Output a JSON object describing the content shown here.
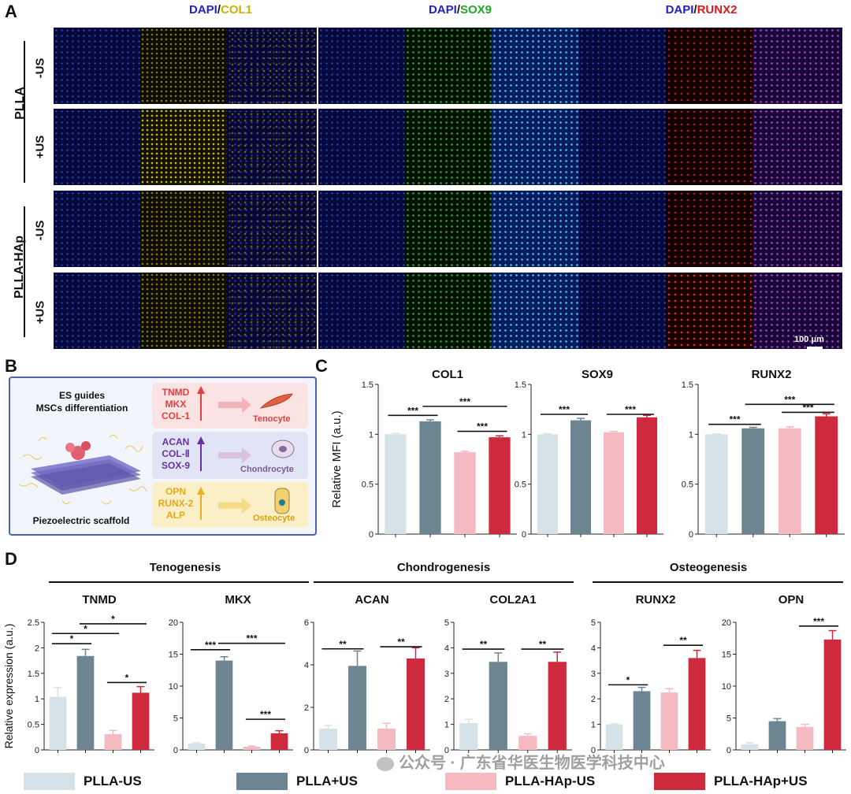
{
  "panelA": {
    "letter": "A",
    "headers": [
      {
        "dapi": "DAPI",
        "slash": "/",
        "marker": "COL1",
        "color": "#c8b400"
      },
      {
        "dapi": "DAPI",
        "slash": "/",
        "marker": "SOX9",
        "color": "#22a822"
      },
      {
        "dapi": "DAPI",
        "slash": "/",
        "marker": "RUNX2",
        "color": "#e01818"
      }
    ],
    "dapi_color": "#2020d0",
    "group_labels": [
      "PLLA",
      "PLLA-HAp"
    ],
    "row_labels": [
      "-US",
      "+US",
      "-US",
      "+US"
    ],
    "scale_bar": "100 μm"
  },
  "panelB": {
    "letter": "B",
    "title_line1": "ES guides",
    "title_line2": "MSCs differentiation",
    "scaffold_label": "Piezoelectric scaffold",
    "rows": [
      {
        "markers": [
          "TNMD",
          "MKX",
          "COL-1"
        ],
        "cell": "Tenocyte",
        "color": "#e04040",
        "bg": "#fbe3e3"
      },
      {
        "markers": [
          "ACAN",
          "COL-Ⅱ",
          "SOX-9"
        ],
        "cell": "Chondrocyte",
        "color": "#6a2fa0",
        "bg": "#e1e4f4"
      },
      {
        "markers": [
          "OPN",
          "RUNX-2",
          "ALP"
        ],
        "cell": "Osteocyte",
        "color": "#e8b020",
        "bg": "#fbefc8"
      }
    ]
  },
  "panelC": {
    "letter": "C"
  },
  "panelD": {
    "letter": "D",
    "groups": [
      "Tenogenesis",
      "Chondrogenesis",
      "Osteogenesis"
    ]
  },
  "legend": [
    {
      "label": "PLLA-US",
      "color": "#d5e3e9"
    },
    {
      "label": "PLLA+US",
      "color": "#6c8591"
    },
    {
      "label": "PLLA-HAp-US",
      "color": "#f4b9c1"
    },
    {
      "label": "PLLA-HAp+US",
      "color": "#cd2a3e"
    }
  ],
  "watermark": "公众号 · 广东省华医生物医学科技中心",
  "chart_data": [
    {
      "type": "bar",
      "title": "COL1",
      "ylabel": "Relative MFI (a.u.)",
      "ylim": [
        0,
        1.5
      ],
      "yticks": [
        0,
        0.5,
        1,
        1.5
      ],
      "tick_labels": [
        "0",
        "0.5",
        "1",
        "1.5"
      ],
      "categories": [
        "PLLA-US",
        "PLLA+US",
        "PLLA-HAp-US",
        "PLLA-HAp+US"
      ],
      "values": [
        1.0,
        1.13,
        0.82,
        0.97
      ],
      "errors": [
        0.01,
        0.015,
        0.01,
        0.015
      ],
      "sig": [
        {
          "a": 0,
          "b": 1,
          "label": "***",
          "y": 1.19
        },
        {
          "a": 1,
          "b": 3,
          "label": "***",
          "y": 1.28
        },
        {
          "a": 2,
          "b": 3,
          "label": "***",
          "y": 1.03
        }
      ]
    },
    {
      "type": "bar",
      "title": "SOX9",
      "ylabel": "",
      "ylim": [
        0,
        1.5
      ],
      "yticks": [
        0,
        0.5,
        1,
        1.5
      ],
      "tick_labels": [
        "0",
        "0.5",
        "1",
        "1.5"
      ],
      "categories": [
        "PLLA-US",
        "PLLA+US",
        "PLLA-HAp-US",
        "PLLA-HAp+US"
      ],
      "values": [
        1.0,
        1.14,
        1.02,
        1.17
      ],
      "errors": [
        0.005,
        0.02,
        0.01,
        0.02
      ],
      "sig": [
        {
          "a": 0,
          "b": 1,
          "label": "***",
          "y": 1.2
        },
        {
          "a": 2,
          "b": 3,
          "label": "***",
          "y": 1.2
        }
      ]
    },
    {
      "type": "bar",
      "title": "RUNX2",
      "ylabel": "",
      "ylim": [
        0,
        1.5
      ],
      "yticks": [
        0,
        0.5,
        1,
        1.5
      ],
      "tick_labels": [
        "0",
        "0.5",
        "1",
        "1.5"
      ],
      "categories": [
        "PLLA-US",
        "PLLA+US",
        "PLLA-HAp-US",
        "PLLA-HAp+US"
      ],
      "values": [
        1.0,
        1.06,
        1.06,
        1.18
      ],
      "errors": [
        0.005,
        0.01,
        0.015,
        0.025
      ],
      "sig": [
        {
          "a": 0,
          "b": 1,
          "label": "***",
          "y": 1.1
        },
        {
          "a": 1,
          "b": 3,
          "label": "***",
          "y": 1.3
        },
        {
          "a": 2,
          "b": 3,
          "label": "***",
          "y": 1.22
        }
      ]
    },
    {
      "type": "bar",
      "title": "TNMD",
      "ylabel": "Relative expression (a.u.)",
      "ylim": [
        0,
        2.5
      ],
      "yticks": [
        0,
        0.5,
        1,
        1.5,
        2,
        2.5
      ],
      "tick_labels": [
        "0",
        "0.5",
        "1",
        "1.5",
        "2",
        "2.5"
      ],
      "categories": [
        "PLLA-US",
        "PLLA+US",
        "PLLA-HAp-US",
        "PLLA-HAp+US"
      ],
      "values": [
        1.04,
        1.84,
        0.31,
        1.12
      ],
      "errors": [
        0.18,
        0.13,
        0.07,
        0.12
      ],
      "sig": [
        {
          "a": 0,
          "b": 1,
          "label": "*",
          "y": 2.08
        },
        {
          "a": 0,
          "b": 2,
          "label": "*",
          "y": 2.28
        },
        {
          "a": 1,
          "b": 3,
          "label": "*",
          "y": 2.47
        },
        {
          "a": 2,
          "b": 3,
          "label": "*",
          "y": 1.32
        }
      ]
    },
    {
      "type": "bar",
      "title": "MKX",
      "ylabel": "",
      "ylim": [
        0,
        20
      ],
      "yticks": [
        0,
        5,
        10,
        15,
        20
      ],
      "tick_labels": [
        "0",
        "5",
        "10",
        "15",
        "20"
      ],
      "categories": [
        "PLLA-US",
        "PLLA+US",
        "PLLA-HAp-US",
        "PLLA-HAp+US"
      ],
      "values": [
        1.0,
        14.0,
        0.5,
        2.6
      ],
      "errors": [
        0.1,
        0.6,
        0.1,
        0.4
      ],
      "sig": [
        {
          "a": 0,
          "b": 1,
          "label": "***",
          "y": 15.7
        },
        {
          "a": 1,
          "b": 3,
          "label": "***",
          "y": 16.7
        },
        {
          "a": 2,
          "b": 3,
          "label": "***",
          "y": 4.8
        }
      ]
    },
    {
      "type": "bar",
      "title": "ACAN",
      "ylabel": "",
      "ylim": [
        0,
        6
      ],
      "yticks": [
        0,
        2,
        4,
        6
      ],
      "tick_labels": [
        "0",
        "2",
        "4",
        "6"
      ],
      "categories": [
        "PLLA-US",
        "PLLA+US",
        "PLLA-HAp-US",
        "PLLA-HAp+US"
      ],
      "values": [
        1.0,
        3.95,
        1.0,
        4.3
      ],
      "errors": [
        0.15,
        0.7,
        0.25,
        0.5
      ],
      "sig": [
        {
          "a": 0,
          "b": 1,
          "label": "**",
          "y": 4.75
        },
        {
          "a": 2,
          "b": 3,
          "label": "**",
          "y": 4.85
        }
      ]
    },
    {
      "type": "bar",
      "title": "COL2A1",
      "ylabel": "",
      "ylim": [
        0,
        5
      ],
      "yticks": [
        0,
        1,
        2,
        3,
        4,
        5
      ],
      "tick_labels": [
        "0",
        "1",
        "2",
        "3",
        "4",
        "5"
      ],
      "categories": [
        "PLLA-US",
        "PLLA+US",
        "PLLA-HAp-US",
        "PLLA-HAp+US"
      ],
      "values": [
        1.05,
        3.45,
        0.55,
        3.45
      ],
      "errors": [
        0.15,
        0.35,
        0.08,
        0.38
      ],
      "sig": [
        {
          "a": 0,
          "b": 1,
          "label": "**",
          "y": 3.95
        },
        {
          "a": 2,
          "b": 3,
          "label": "**",
          "y": 3.95
        }
      ]
    },
    {
      "type": "bar",
      "title": "RUNX2",
      "ylabel": "",
      "ylim": [
        0,
        5
      ],
      "yticks": [
        0,
        1,
        2,
        3,
        4,
        5
      ],
      "tick_labels": [
        "0",
        "1",
        "2",
        "3",
        "4",
        "5"
      ],
      "categories": [
        "PLLA-US",
        "PLLA+US",
        "PLLA-HAp-US",
        "PLLA-HAp+US"
      ],
      "values": [
        1.0,
        2.3,
        2.25,
        3.6
      ],
      "errors": [
        0.02,
        0.15,
        0.15,
        0.3
      ],
      "sig": [
        {
          "a": 0,
          "b": 1,
          "label": "*",
          "y": 2.55
        },
        {
          "a": 2,
          "b": 3,
          "label": "**",
          "y": 4.1
        }
      ]
    },
    {
      "type": "bar",
      "title": "OPN",
      "ylabel": "",
      "ylim": [
        0,
        20
      ],
      "yticks": [
        0,
        5,
        10,
        15,
        20
      ],
      "tick_labels": [
        "0",
        "5",
        "10",
        "15",
        "20"
      ],
      "categories": [
        "PLLA-US",
        "PLLA+US",
        "PLLA-HAp-US",
        "PLLA-HAp+US"
      ],
      "values": [
        0.9,
        4.5,
        3.6,
        17.3
      ],
      "errors": [
        0.2,
        0.4,
        0.4,
        1.4
      ],
      "sig": [
        {
          "a": 2,
          "b": 3,
          "label": "***",
          "y": 19.4
        }
      ]
    }
  ]
}
